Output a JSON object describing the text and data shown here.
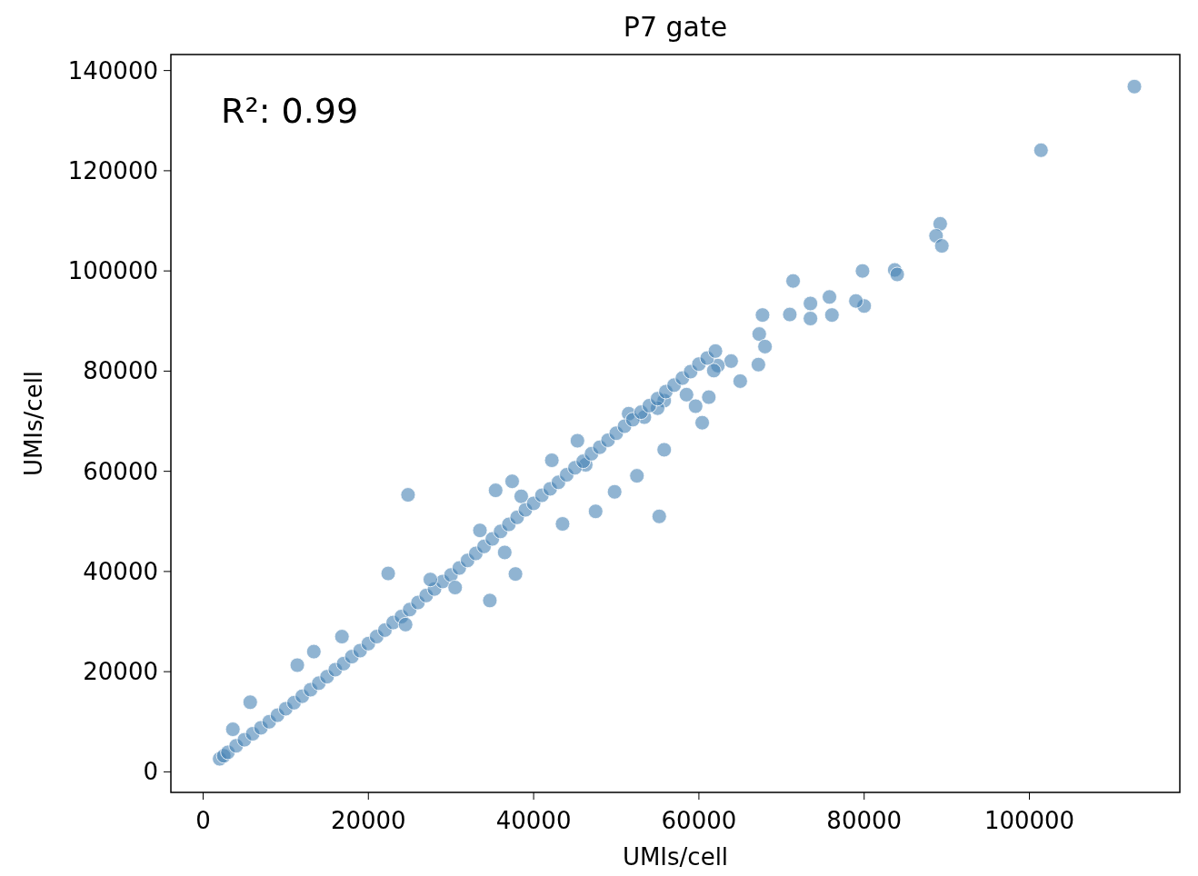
{
  "chart_data": {
    "type": "scatter",
    "title": "P7 gate",
    "xlabel": "UMIs/cell",
    "ylabel": "UMIs/cell",
    "annotations": [
      "R²: 0.99"
    ],
    "xlim": [
      -3900,
      118200
    ],
    "ylim": [
      -4100,
      143200
    ],
    "xticks": [
      0,
      20000,
      40000,
      60000,
      80000,
      100000
    ],
    "yticks": [
      0,
      20000,
      40000,
      60000,
      80000,
      100000,
      120000,
      140000
    ],
    "grid": false,
    "marker": "circle",
    "series": [
      {
        "color": "#4682b4",
        "x": [
          112700,
          101400,
          89200,
          88700,
          89400,
          83700,
          84000,
          79800,
          80000,
          79000,
          75800,
          76100,
          73500,
          73500,
          71400,
          71000,
          67700,
          67300,
          68000,
          67200,
          65000,
          63900,
          62300,
          61800,
          61200,
          60400,
          58500,
          59600,
          55800,
          55000,
          53400,
          51500,
          55800,
          52500,
          55200,
          49800,
          45300,
          46300,
          42200,
          37400,
          35400,
          38500,
          34700,
          37800,
          24800,
          22400,
          16800,
          13400,
          11400,
          5700,
          3600,
          2000,
          2500,
          3000,
          4000,
          5000,
          6000,
          7000,
          8000,
          9000,
          10000,
          11000,
          12000,
          13000,
          14000,
          15000,
          16000,
          17000,
          18000,
          19000,
          20000,
          21000,
          22000,
          23000,
          24000,
          25000,
          26000,
          27000,
          28000,
          29000,
          30000,
          31000,
          32000,
          33000,
          34000,
          35000,
          36000,
          37000,
          38000,
          39000,
          40000,
          41000,
          42000,
          43000,
          44000,
          45000,
          46000,
          47000,
          48000,
          49000,
          50000,
          51000,
          52000,
          53000,
          54000,
          55000,
          56000,
          57000,
          58000,
          59000,
          60000,
          61000,
          62000,
          30500,
          27500,
          24500,
          43500,
          47500,
          33500,
          36500
        ],
        "values": [
          136800,
          124100,
          109400,
          107000,
          105000,
          100200,
          99300,
          100000,
          93000,
          94000,
          94800,
          91200,
          93500,
          90500,
          98000,
          91300,
          91200,
          87400,
          84900,
          81300,
          78000,
          82000,
          81100,
          80100,
          74800,
          69700,
          75300,
          73000,
          74100,
          72600,
          70800,
          71500,
          64300,
          59100,
          51000,
          55900,
          66100,
          61300,
          62200,
          58000,
          56200,
          55000,
          34200,
          39500,
          55300,
          39600,
          27000,
          24000,
          21300,
          13900,
          8500,
          2600,
          3200,
          3900,
          5200,
          6400,
          7600,
          8800,
          10000,
          11300,
          12600,
          13800,
          15100,
          16400,
          17700,
          19000,
          20400,
          21600,
          23000,
          24200,
          25600,
          27000,
          28300,
          29800,
          31000,
          32400,
          33800,
          35200,
          36500,
          38000,
          39300,
          40700,
          42200,
          43600,
          45000,
          46500,
          48000,
          49400,
          50800,
          52300,
          53600,
          55200,
          56500,
          57800,
          59300,
          60700,
          62000,
          63500,
          64800,
          66200,
          67600,
          69000,
          70300,
          71800,
          73100,
          74500,
          75900,
          77200,
          78600,
          79900,
          81400,
          82600,
          84000,
          36800,
          38400,
          29400,
          49500,
          52000,
          48200,
          43800
        ]
      }
    ]
  }
}
